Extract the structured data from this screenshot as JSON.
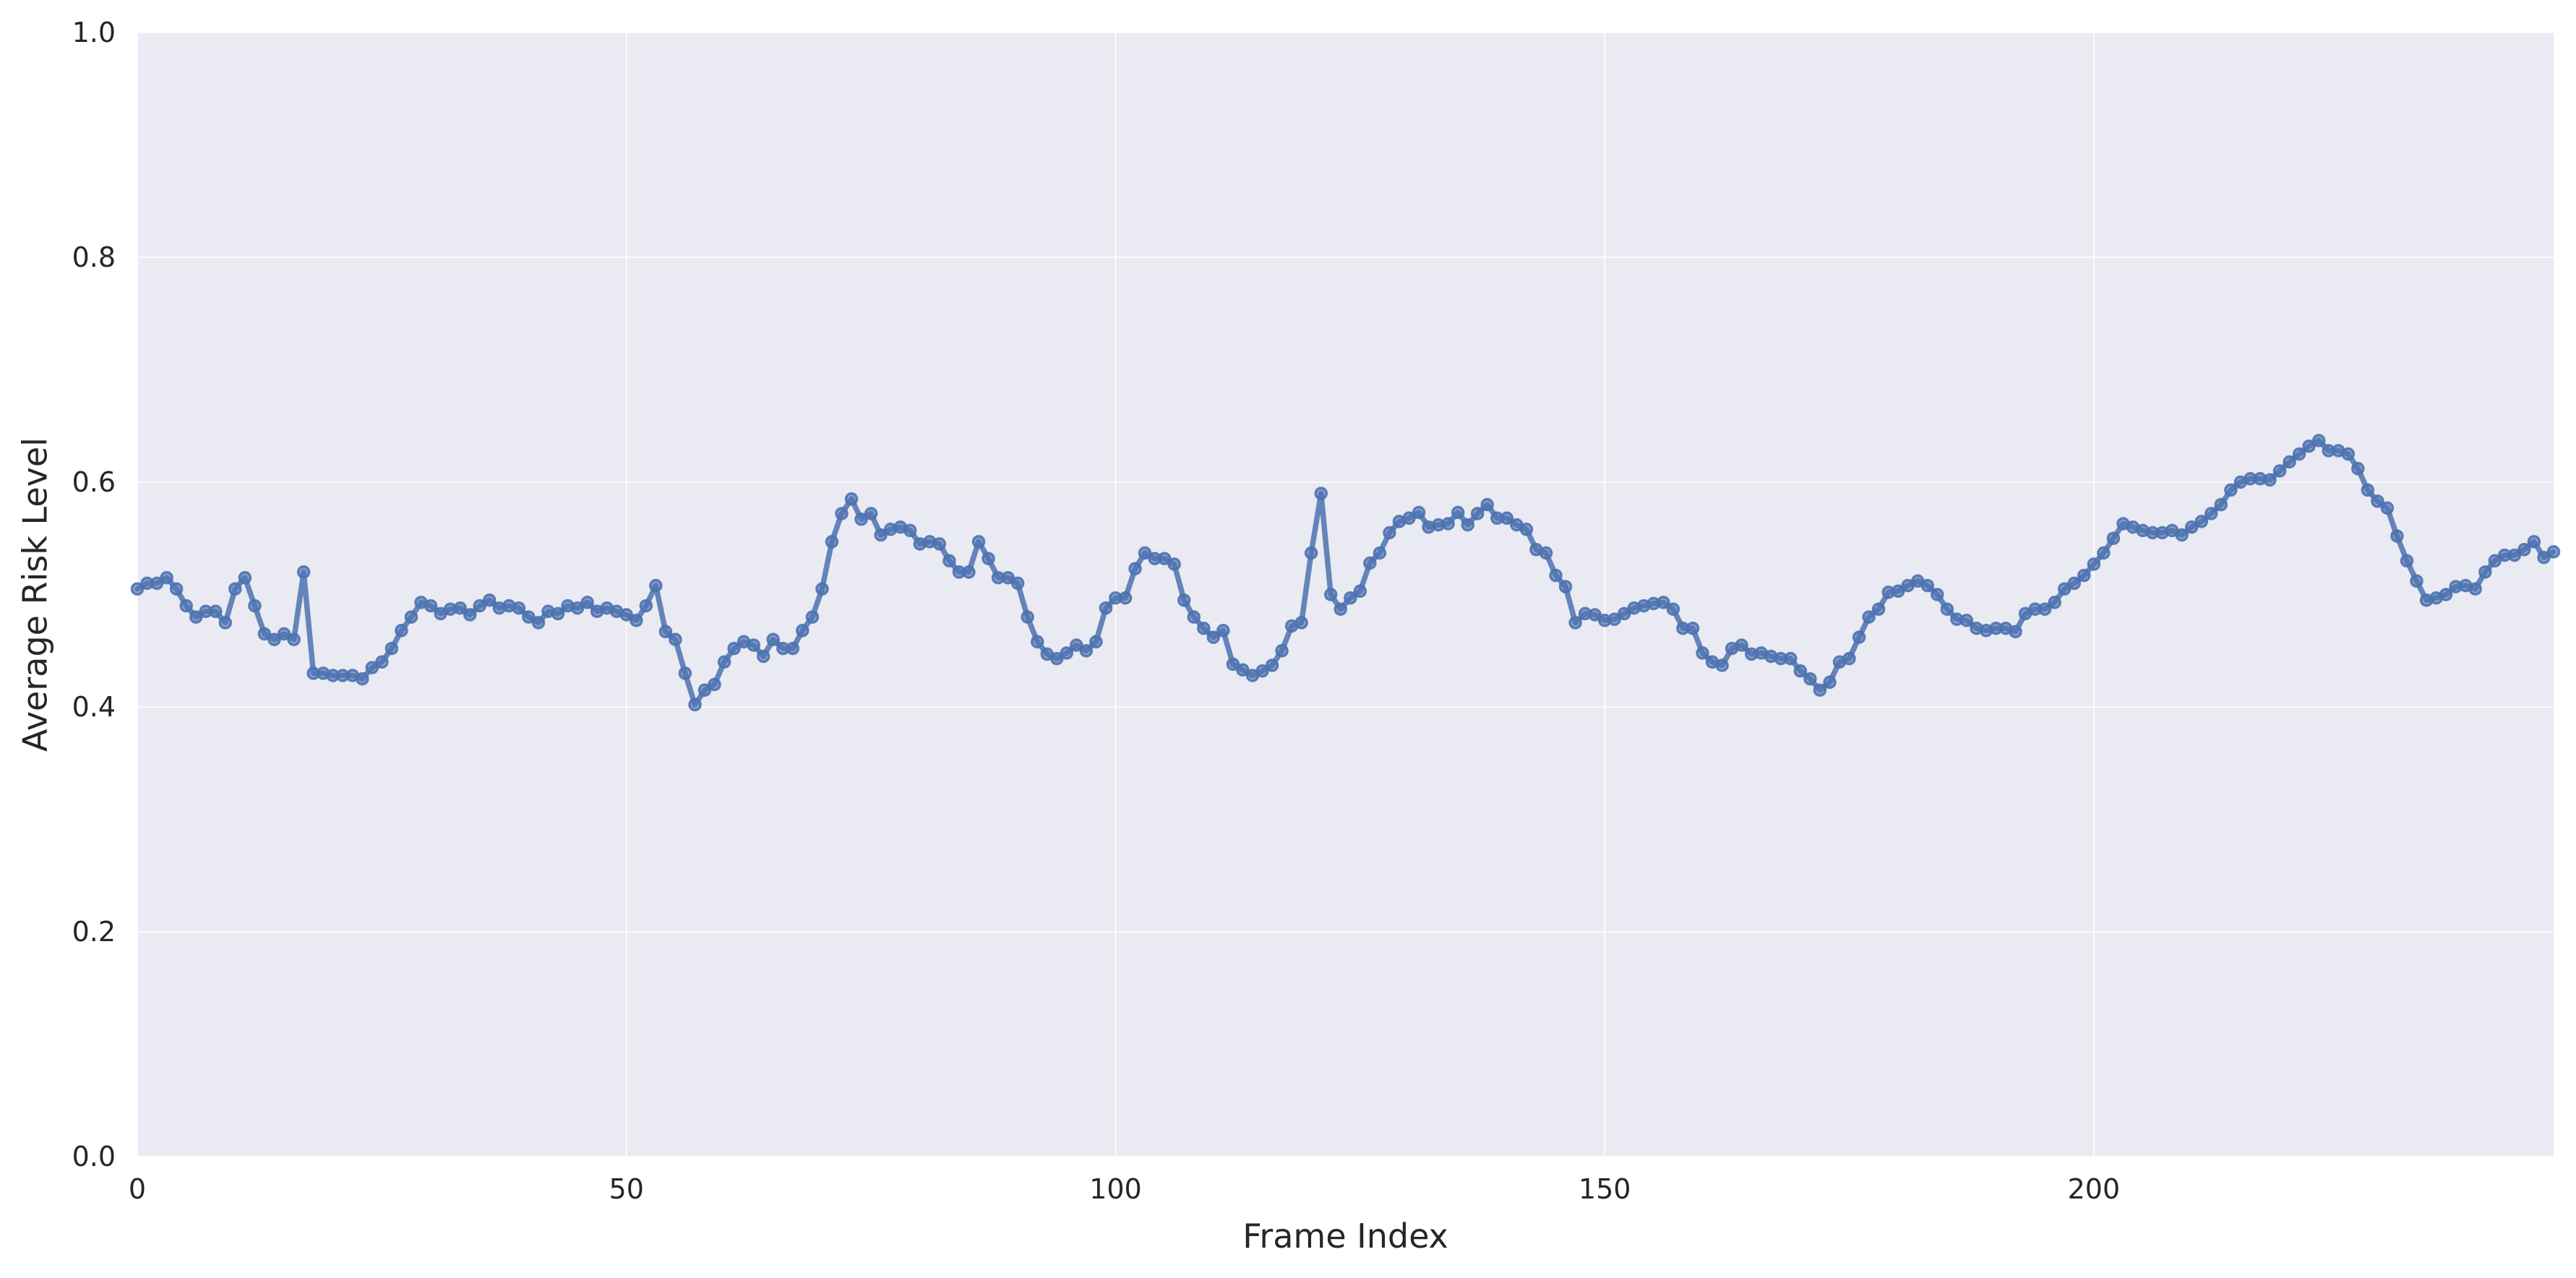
{
  "chart_data": {
    "type": "line",
    "title": "",
    "xlabel": "Frame Index",
    "ylabel": "Average Risk Level",
    "xlim": [
      0,
      247
    ],
    "ylim": [
      0.0,
      1.0
    ],
    "xticks": [
      0,
      50,
      100,
      150,
      200
    ],
    "xtick_labels": [
      "0",
      "50",
      "100",
      "150",
      "200"
    ],
    "yticks": [
      0.0,
      0.2,
      0.4,
      0.6,
      0.8,
      1.0
    ],
    "ytick_labels": [
      "0.0",
      "0.2",
      "0.4",
      "0.6",
      "0.8",
      "1.0"
    ],
    "grid": true,
    "background": "#eaeaf2",
    "series": [
      {
        "color": "#4c72b0",
        "marker": "circle",
        "x_start": 0,
        "x_step": 1,
        "values": [
          0.505,
          0.51,
          0.51,
          0.515,
          0.505,
          0.49,
          0.48,
          0.485,
          0.485,
          0.475,
          0.505,
          0.515,
          0.49,
          0.465,
          0.46,
          0.465,
          0.46,
          0.52,
          0.43,
          0.43,
          0.428,
          0.428,
          0.428,
          0.425,
          0.435,
          0.44,
          0.452,
          0.468,
          0.48,
          0.493,
          0.49,
          0.483,
          0.487,
          0.488,
          0.482,
          0.49,
          0.495,
          0.488,
          0.49,
          0.488,
          0.48,
          0.475,
          0.485,
          0.483,
          0.49,
          0.488,
          0.493,
          0.485,
          0.488,
          0.485,
          0.482,
          0.477,
          0.49,
          0.508,
          0.467,
          0.46,
          0.43,
          0.402,
          0.415,
          0.42,
          0.44,
          0.452,
          0.458,
          0.455,
          0.445,
          0.46,
          0.452,
          0.452,
          0.468,
          0.48,
          0.505,
          0.547,
          0.572,
          0.585,
          0.567,
          0.572,
          0.553,
          0.558,
          0.56,
          0.557,
          0.545,
          0.547,
          0.545,
          0.53,
          0.52,
          0.52,
          0.547,
          0.532,
          0.515,
          0.515,
          0.51,
          0.48,
          0.458,
          0.447,
          0.443,
          0.448,
          0.455,
          0.45,
          0.458,
          0.488,
          0.497,
          0.497,
          0.523,
          0.537,
          0.532,
          0.532,
          0.527,
          0.495,
          0.48,
          0.47,
          0.462,
          0.468,
          0.438,
          0.433,
          0.428,
          0.432,
          0.437,
          0.45,
          0.472,
          0.475,
          0.537,
          0.59,
          0.5,
          0.487,
          0.497,
          0.503,
          0.528,
          0.537,
          0.555,
          0.565,
          0.568,
          0.573,
          0.56,
          0.562,
          0.563,
          0.573,
          0.562,
          0.572,
          0.58,
          0.568,
          0.568,
          0.562,
          0.558,
          0.54,
          0.537,
          0.517,
          0.507,
          0.475,
          0.483,
          0.482,
          0.477,
          0.478,
          0.483,
          0.488,
          0.49,
          0.492,
          0.493,
          0.487,
          0.47,
          0.47,
          0.448,
          0.44,
          0.437,
          0.452,
          0.455,
          0.447,
          0.448,
          0.445,
          0.443,
          0.443,
          0.432,
          0.425,
          0.415,
          0.422,
          0.44,
          0.443,
          0.462,
          0.48,
          0.487,
          0.502,
          0.503,
          0.508,
          0.512,
          0.508,
          0.5,
          0.487,
          0.478,
          0.477,
          0.47,
          0.468,
          0.47,
          0.47,
          0.467,
          0.483,
          0.487,
          0.487,
          0.493,
          0.505,
          0.51,
          0.517,
          0.527,
          0.537,
          0.55,
          0.563,
          0.56,
          0.557,
          0.555,
          0.555,
          0.557,
          0.553,
          0.56,
          0.565,
          0.572,
          0.58,
          0.593,
          0.6,
          0.603,
          0.603,
          0.602,
          0.61,
          0.618,
          0.625,
          0.632,
          0.637,
          0.628,
          0.628,
          0.625,
          0.612,
          0.593,
          0.583,
          0.577,
          0.552,
          0.53,
          0.512,
          0.495,
          0.497,
          0.5,
          0.507,
          0.508,
          0.505,
          0.52,
          0.53,
          0.535,
          0.535,
          0.54,
          0.547,
          0.533,
          0.538
        ]
      }
    ]
  }
}
